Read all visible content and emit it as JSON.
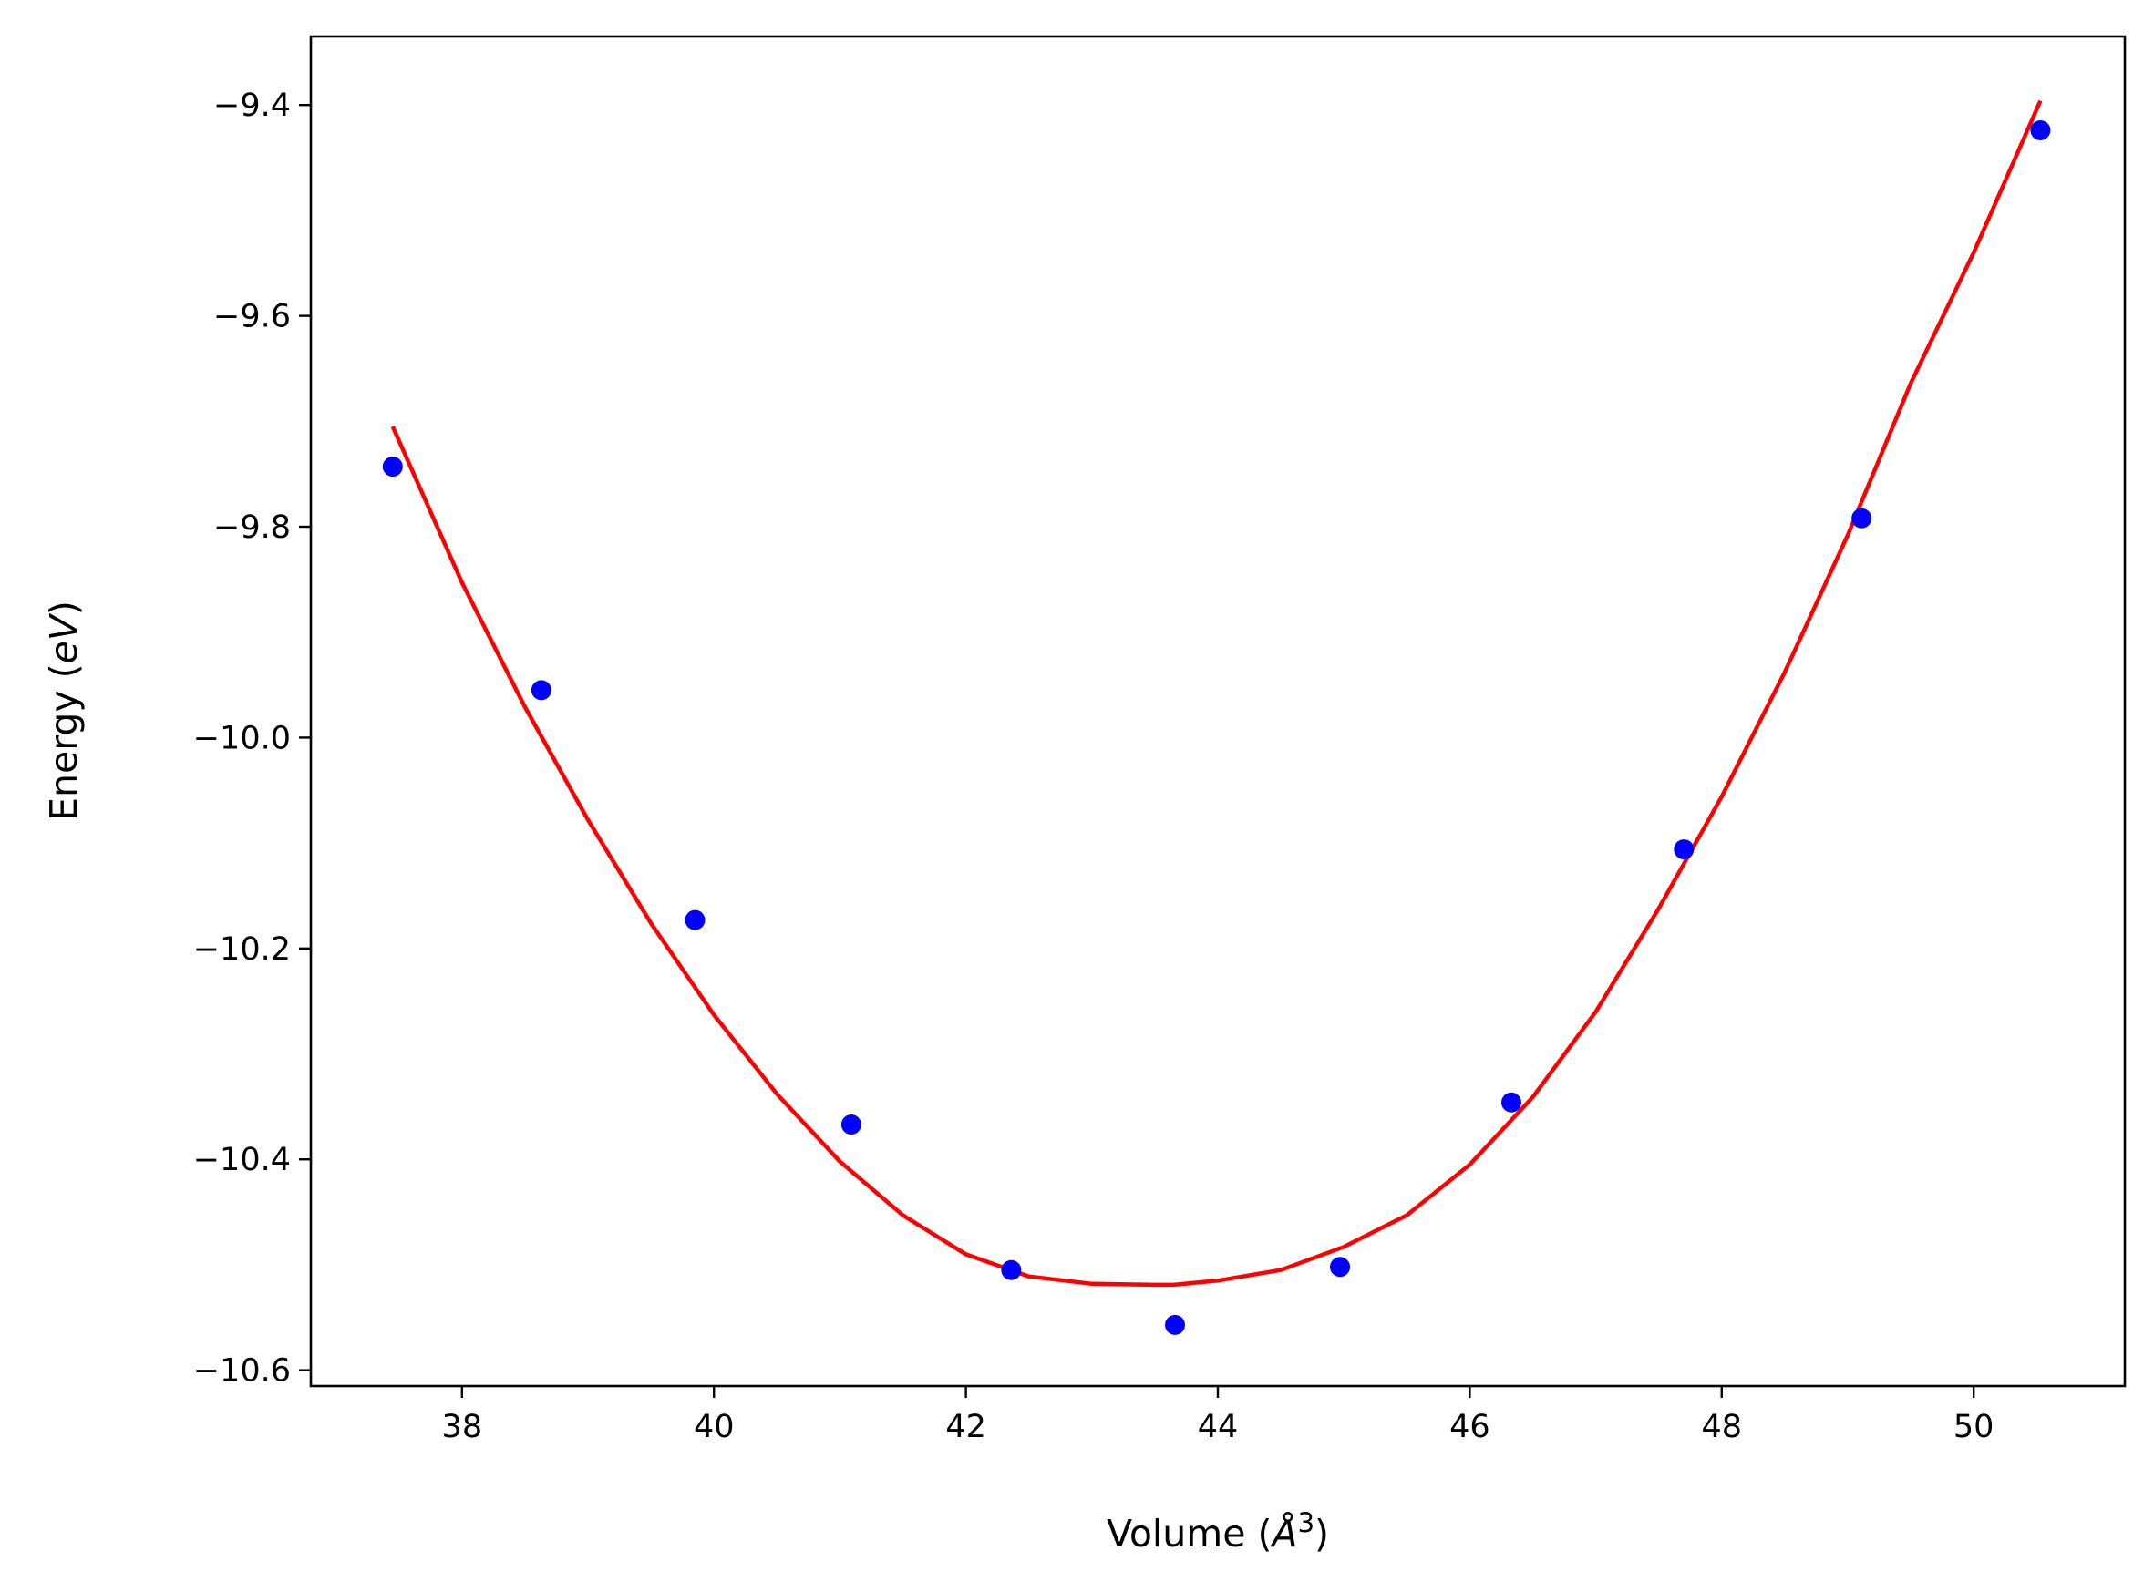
{
  "chart_data": {
    "type": "scatter",
    "title": "",
    "xlabel": "Volume ($\\AA^3$)",
    "ylabel": "Energy ($eV$)",
    "xlabel_parts": {
      "pre": "Volume (",
      "sym": "Å",
      "sup": "3",
      "post": ")"
    },
    "ylabel_parts": {
      "pre": "Energy (",
      "italic": "eV",
      "post": ")"
    },
    "xlim": [
      36.8,
      51.2
    ],
    "ylim": [
      -10.615,
      -9.335
    ],
    "xticks": [
      38,
      40,
      42,
      44,
      46,
      48,
      50
    ],
    "xtick_labels": [
      "38",
      "40",
      "42",
      "44",
      "46",
      "48",
      "50"
    ],
    "yticks": [
      -10.6,
      -10.4,
      -10.2,
      -10.0,
      -9.8,
      -9.6,
      -9.4
    ],
    "ytick_labels": [
      "−10.6",
      "−10.4",
      "−10.2",
      "−10.0",
      "−9.8",
      "−9.6",
      "−9.4"
    ],
    "grid": false,
    "legend": "none",
    "series": [
      {
        "kind": "points",
        "color": "#0000ff",
        "x": [
          37.45,
          38.63,
          39.85,
          41.09,
          42.36,
          43.66,
          44.97,
          46.33,
          47.7,
          49.11,
          50.53
        ],
        "y": [
          -9.743,
          -9.955,
          -10.173,
          -10.367,
          -10.505,
          -10.557,
          -10.502,
          -10.346,
          -10.106,
          -9.792,
          -9.424
        ]
      },
      {
        "kind": "fit",
        "color": "#ff0000",
        "x": [
          37.45,
          38.0,
          38.5,
          39.0,
          39.5,
          40.0,
          40.5,
          41.0,
          41.5,
          42.0,
          42.5,
          43.0,
          43.5,
          43.65,
          44.0,
          44.5,
          45.0,
          45.5,
          46.0,
          46.5,
          47.0,
          47.5,
          48.0,
          48.5,
          49.0,
          49.5,
          50.0,
          50.53
        ],
        "y": [
          -9.705,
          -9.853,
          -9.971,
          -10.078,
          -10.176,
          -10.263,
          -10.338,
          -10.402,
          -10.453,
          -10.49,
          -10.511,
          -10.518,
          -10.519,
          -10.519,
          -10.515,
          -10.505,
          -10.483,
          -10.453,
          -10.405,
          -10.341,
          -10.26,
          -10.162,
          -10.056,
          -9.938,
          -9.808,
          -9.664,
          -9.54,
          -9.396
        ]
      }
    ]
  }
}
